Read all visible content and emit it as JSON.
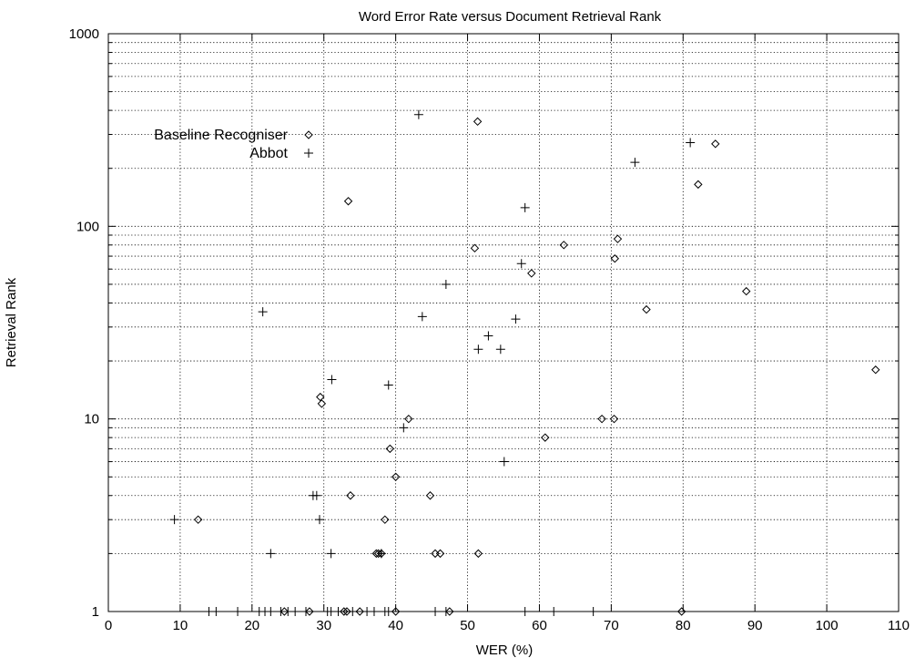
{
  "chart_data": {
    "type": "scatter",
    "title": "Word Error Rate versus Document Retrieval Rank",
    "xlabel": "WER (%)",
    "ylabel": "Retrieval Rank",
    "xlim": [
      0,
      110
    ],
    "ylim": [
      1,
      1000
    ],
    "yscale": "log",
    "grid": true,
    "legend_position": "top-left",
    "x_ticks": [
      0,
      10,
      20,
      30,
      40,
      50,
      60,
      70,
      80,
      90,
      100,
      110
    ],
    "y_tick_labels": [
      1,
      10,
      100,
      1000
    ],
    "series": [
      {
        "name": "Baseline Recogniser",
        "marker": "diamond",
        "points": [
          [
            12.5,
            3
          ],
          [
            24.5,
            1
          ],
          [
            28,
            1
          ],
          [
            29.5,
            13
          ],
          [
            29.7,
            12
          ],
          [
            32.8,
            1
          ],
          [
            33.2,
            1
          ],
          [
            33.4,
            135
          ],
          [
            33.7,
            4
          ],
          [
            35,
            1
          ],
          [
            37.3,
            2
          ],
          [
            37.6,
            2
          ],
          [
            38,
            2
          ],
          [
            38.5,
            3
          ],
          [
            39.2,
            7
          ],
          [
            40,
            5
          ],
          [
            40,
            1
          ],
          [
            41.8,
            10
          ],
          [
            44.8,
            4
          ],
          [
            45.5,
            2
          ],
          [
            46.2,
            2
          ],
          [
            47.5,
            1
          ],
          [
            51,
            77
          ],
          [
            51.4,
            350
          ],
          [
            51.5,
            2
          ],
          [
            58.9,
            57
          ],
          [
            60.8,
            8
          ],
          [
            63.4,
            80
          ],
          [
            68.7,
            10
          ],
          [
            70.4,
            10
          ],
          [
            70.5,
            68
          ],
          [
            70.9,
            86
          ],
          [
            74.9,
            37
          ],
          [
            79.8,
            1
          ],
          [
            82.1,
            165
          ],
          [
            84.5,
            268
          ],
          [
            88.8,
            46
          ],
          [
            106.8,
            18
          ]
        ]
      },
      {
        "name": "Abbot",
        "marker": "plus",
        "points": [
          [
            9.2,
            3
          ],
          [
            21.5,
            36
          ],
          [
            22.6,
            2
          ],
          [
            28.5,
            4
          ],
          [
            29,
            4
          ],
          [
            29.4,
            3
          ],
          [
            31,
            2
          ],
          [
            31.1,
            16
          ],
          [
            38,
            2
          ],
          [
            39,
            15
          ],
          [
            41.1,
            9
          ],
          [
            43.2,
            380
          ],
          [
            43.7,
            34
          ],
          [
            47,
            50
          ],
          [
            51.5,
            23
          ],
          [
            52.9,
            27
          ],
          [
            54.6,
            23
          ],
          [
            55.1,
            6
          ],
          [
            56.7,
            33
          ],
          [
            57.5,
            64
          ],
          [
            58,
            125
          ],
          [
            73.3,
            215
          ],
          [
            81,
            272
          ],
          [
            14,
            1
          ],
          [
            15,
            1
          ],
          [
            18,
            1
          ],
          [
            21,
            1
          ],
          [
            21.8,
            1
          ],
          [
            22.6,
            1
          ],
          [
            24,
            1
          ],
          [
            25,
            1
          ],
          [
            26,
            1
          ],
          [
            27.5,
            1
          ],
          [
            30.5,
            1
          ],
          [
            31,
            1
          ],
          [
            32,
            1
          ],
          [
            34,
            1
          ],
          [
            36,
            1
          ],
          [
            37,
            1
          ],
          [
            38.5,
            1
          ],
          [
            39,
            1
          ],
          [
            45.5,
            1
          ],
          [
            47,
            1
          ],
          [
            58,
            1
          ],
          [
            62,
            1
          ],
          [
            67.5,
            1
          ]
        ]
      }
    ]
  }
}
